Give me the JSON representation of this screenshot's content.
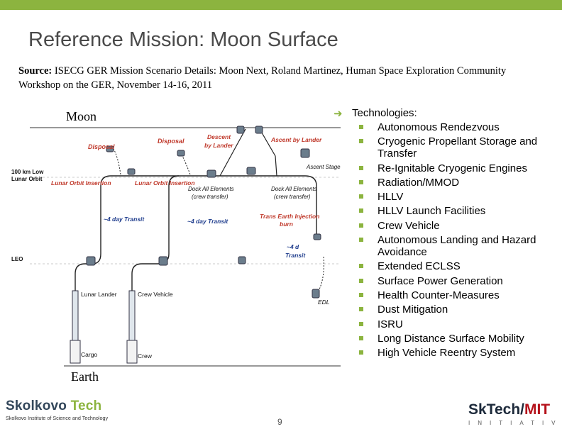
{
  "slide": {
    "title": "Reference Mission: Moon Surface",
    "source_label": "Source:",
    "source_text": " ISECG GER Mission Scenario Details: Moon Next, Roland Martinez, Human Space Exploration Community Workshop on the GER, November 14-16, 2011",
    "page_number": "9"
  },
  "diagram": {
    "moon_label": "Moon",
    "earth_label": "Earth",
    "orbit_100km": "100 km Low",
    "orbit_100km_2": "Lunar Orbit",
    "leo": "LEO",
    "disposal_1": "Disposal",
    "disposal_2": "Disposal",
    "descent_1": "Descent",
    "descent_2": "by Lander",
    "ascent_lander": "Ascent by Lander",
    "ascent_stage": "Ascent Stage",
    "loi_1": "Lunar Orbit Insertion",
    "loi_2": "Lunar Orbit Insertion",
    "dock_1a": "Dock All Elements",
    "dock_1b": "(crew transfer)",
    "dock_2a": "Dock All Elements",
    "dock_2b": "(crew transfer)",
    "transit_1": "~4 day Transit",
    "transit_2": "~4 day Transit",
    "tei_1": "Trans Earth Injection",
    "tei_2": "burn",
    "transit_3a": "~4 d",
    "transit_3b": "Transit",
    "lunar_lander": "Lunar Lander",
    "crew_vehicle": "Crew Vehicle",
    "edl": "EDL",
    "cargo": "Cargo",
    "crew": "Crew"
  },
  "technologies": {
    "heading": "Technologies:",
    "items": [
      "Autonomous Rendezvous",
      "Cryogenic Propellant Storage and Transfer",
      "Re-Ignitable Cryogenic Engines",
      "Radiation/MMOD",
      "HLLV",
      "HLLV Launch Facilities",
      "Crew Vehicle",
      "Autonomous Landing and Hazard Avoidance",
      "Extended ECLSS",
      "Surface Power Generation",
      "Health Counter-Measures",
      "Dust Mitigation",
      "ISRU",
      "Long Distance Surface Mobility",
      "High Vehicle Reentry System"
    ]
  },
  "logos": {
    "left_name_1": "Skolkovo",
    "left_name_2": "Tech",
    "left_sub": "Skolkovo Institute of Science and Technology",
    "right_1": "SkTech/",
    "right_2": "MIT",
    "right_sub": "INITIATIVE"
  },
  "colors": {
    "accent_green": "#8cb43f",
    "label_red": "#c0392b",
    "dark_blue": "#1d2a3b",
    "mit_red": "#b5121b"
  }
}
